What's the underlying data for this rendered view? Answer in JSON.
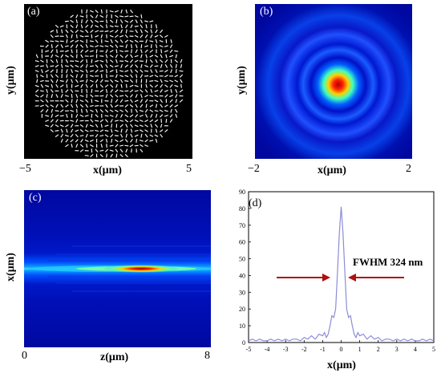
{
  "panel_a": {
    "label": "(a)",
    "xlabel": "x(μm)",
    "ylabel": "y(μm)",
    "x_tick_left": "−5",
    "x_tick_right": "5"
  },
  "panel_b": {
    "label": "(b)",
    "xlabel": "x(μm)",
    "ylabel": "y(μm)",
    "x_tick_left": "−2",
    "x_tick_right": "2"
  },
  "panel_c": {
    "label": "(c)",
    "xlabel": "z(μm)",
    "ylabel": "x(μm)",
    "x_tick_left": "0",
    "x_tick_right": "8"
  },
  "chart_data": {
    "type": "line",
    "label": "(d)",
    "xlabel": "x(μm)",
    "ylabel": "",
    "xlim": [
      -5,
      5
    ],
    "ylim": [
      0,
      90
    ],
    "xticks": [
      -5,
      -4,
      -3,
      -2,
      -1,
      0,
      1,
      2,
      3,
      4,
      5
    ],
    "yticks": [
      0,
      10,
      20,
      30,
      40,
      50,
      60,
      70,
      80,
      90
    ],
    "annotation": "FWHM 324 nm",
    "series": [
      {
        "color": "#8c8cd8",
        "x": [
          -5,
          -4.8,
          -4.6,
          -4.4,
          -4.2,
          -4.0,
          -3.8,
          -3.6,
          -3.4,
          -3.2,
          -3.0,
          -2.8,
          -2.6,
          -2.4,
          -2.2,
          -2.0,
          -1.8,
          -1.6,
          -1.4,
          -1.2,
          -1.0,
          -0.9,
          -0.8,
          -0.7,
          -0.6,
          -0.5,
          -0.4,
          -0.3,
          -0.2,
          -0.1,
          0,
          0.1,
          0.2,
          0.3,
          0.4,
          0.5,
          0.6,
          0.7,
          0.8,
          0.9,
          1.0,
          1.2,
          1.4,
          1.6,
          1.8,
          2.0,
          2.2,
          2.4,
          2.6,
          2.8,
          3.0,
          3.2,
          3.4,
          3.6,
          3.8,
          4.0,
          4.2,
          4.4,
          4.6,
          4.8,
          5
        ],
        "y": [
          1,
          2,
          1,
          2,
          1,
          1,
          2,
          1,
          2,
          1,
          2,
          1,
          2,
          2,
          1,
          3,
          2,
          4,
          2,
          5,
          4,
          6,
          3,
          5,
          10,
          16,
          15,
          20,
          42,
          65,
          81,
          65,
          42,
          20,
          15,
          16,
          10,
          5,
          3,
          6,
          4,
          5,
          2,
          4,
          2,
          3,
          1,
          2,
          2,
          1,
          2,
          1,
          2,
          1,
          2,
          1,
          1,
          2,
          1,
          2,
          1
        ]
      }
    ]
  }
}
